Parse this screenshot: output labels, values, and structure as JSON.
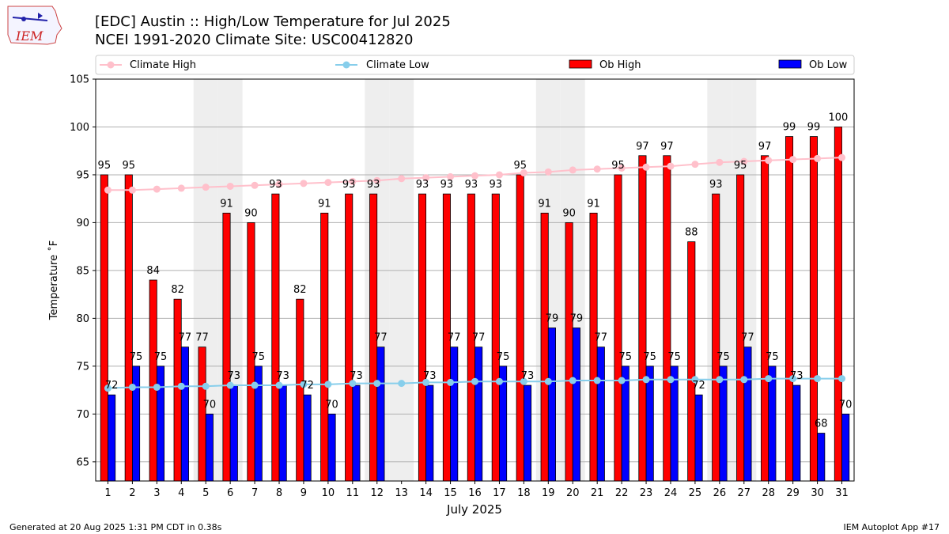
{
  "header": {
    "title_line1": "[EDC] Austin :: High/Low Temperature for Jul 2025",
    "title_line2": "NCEI 1991-2020 Climate Site: USC00412820"
  },
  "logo": {
    "text": "IEM"
  },
  "footer": {
    "left": "Generated at 20 Aug 2025 1:31 PM CDT in 0.38s",
    "right": "IEM Autoplot App #17"
  },
  "colors": {
    "ob_high": "#ff0000",
    "ob_low": "#0000ff",
    "climate_high": "#ffc0cb",
    "climate_low": "#87ceeb",
    "weekend_shade": "#eeeeee"
  },
  "chart_data": {
    "type": "bar",
    "xlabel": "July 2025",
    "ylabel": "Temperature ˚F",
    "ylim": [
      63,
      105
    ],
    "yticks": [
      65,
      70,
      75,
      80,
      85,
      90,
      95,
      100,
      105
    ],
    "grid": true,
    "legend_position": "top",
    "categories": [
      "1",
      "2",
      "3",
      "4",
      "5",
      "6",
      "7",
      "8",
      "9",
      "10",
      "11",
      "12",
      "13",
      "14",
      "15",
      "16",
      "17",
      "18",
      "19",
      "20",
      "21",
      "22",
      "23",
      "24",
      "25",
      "26",
      "27",
      "28",
      "29",
      "30",
      "31"
    ],
    "shaded_days": [
      "5",
      "6",
      "12",
      "13",
      "19",
      "20",
      "26",
      "27"
    ],
    "series": [
      {
        "name": "Ob High",
        "kind": "bar",
        "values": [
          95,
          95,
          84,
          82,
          77,
          91,
          90,
          93,
          82,
          91,
          93,
          93,
          null,
          93,
          93,
          93,
          93,
          95,
          91,
          90,
          91,
          95,
          97,
          97,
          88,
          93,
          95,
          97,
          99,
          99,
          100
        ]
      },
      {
        "name": "Ob Low",
        "kind": "bar",
        "values": [
          72,
          75,
          75,
          77,
          70,
          73,
          75,
          73,
          72,
          70,
          73,
          77,
          null,
          73,
          77,
          77,
          75,
          73,
          79,
          79,
          77,
          75,
          75,
          75,
          72,
          75,
          77,
          75,
          73,
          68,
          70
        ]
      },
      {
        "name": "Climate High",
        "kind": "line",
        "values": [
          93.4,
          93.4,
          93.5,
          93.6,
          93.7,
          93.8,
          93.9,
          94.0,
          94.1,
          94.2,
          94.3,
          94.4,
          94.6,
          94.7,
          94.8,
          94.9,
          95.0,
          95.2,
          95.3,
          95.5,
          95.6,
          95.7,
          95.8,
          95.9,
          96.1,
          96.3,
          96.4,
          96.5,
          96.6,
          96.7,
          96.8
        ]
      },
      {
        "name": "Climate Low",
        "kind": "line",
        "values": [
          72.7,
          72.8,
          72.8,
          72.9,
          72.9,
          73.0,
          73.0,
          73.0,
          73.1,
          73.1,
          73.2,
          73.2,
          73.2,
          73.3,
          73.3,
          73.4,
          73.4,
          73.4,
          73.4,
          73.5,
          73.5,
          73.5,
          73.6,
          73.6,
          73.6,
          73.6,
          73.6,
          73.7,
          73.7,
          73.7,
          73.7
        ]
      }
    ]
  }
}
